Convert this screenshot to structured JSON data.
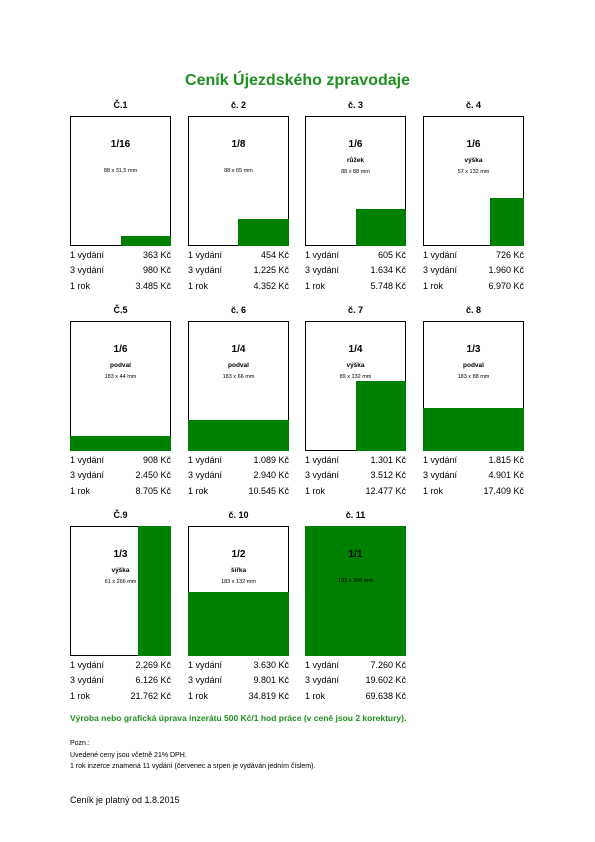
{
  "title": "Ceník Újezdského zpravodaje",
  "ads": [
    {
      "number": "Č.1",
      "fraction": "1/16",
      "dimensions": "88 x 31,5 mm",
      "prices": [
        [
          "1 vydání",
          "363 Kč"
        ],
        [
          "3 vydání",
          "980 Kč"
        ],
        [
          "1 rok",
          "3.485 Kč"
        ]
      ]
    },
    {
      "number": "č. 2",
      "fraction": "1/8",
      "dimensions": "88 x 65 mm",
      "prices": [
        [
          "1 vydání",
          "454 Kč"
        ],
        [
          "3 vydání",
          "1.225 Kč"
        ],
        [
          "1 rok",
          "4.352 Kč"
        ]
      ]
    },
    {
      "number": "č. 3",
      "fraction": "1/6",
      "variant": "růžek",
      "dimensions": "88 x 88 mm",
      "prices": [
        [
          "1 vydání",
          "605 Kč"
        ],
        [
          "3 vydání",
          "1.634 Kč"
        ],
        [
          "1 rok",
          "5.748 Kč"
        ]
      ]
    },
    {
      "number": "č. 4",
      "fraction": "1/6",
      "variant": "výška",
      "dimensions": "57 x 132 mm",
      "prices": [
        [
          "1 vydání",
          "726 Kč"
        ],
        [
          "3 vydání",
          "1.960 Kč"
        ],
        [
          "1 rok",
          "6.970 Kč"
        ]
      ]
    },
    {
      "number": "Č.5",
      "fraction": "1/6",
      "variant": "podval",
      "dimensions": "183 x 44 mm",
      "prices": [
        [
          "1 vydání",
          "908 Kč"
        ],
        [
          "3 vydání",
          "2.450 Kč"
        ],
        [
          "1 rok",
          "8.705 Kč"
        ]
      ]
    },
    {
      "number": "č. 6",
      "fraction": "1/4",
      "variant": "podval",
      "dimensions": "183 x 66 mm",
      "prices": [
        [
          "1 vydání",
          "1.089 Kč"
        ],
        [
          "3 vydání",
          "2.940 Kč"
        ],
        [
          "1 rok",
          "10.545 Kč"
        ]
      ]
    },
    {
      "number": "č. 7",
      "fraction": "1/4",
      "variant": "výška",
      "dimensions": "89 x 132 mm",
      "prices": [
        [
          "1 vydání",
          "1.301 Kč"
        ],
        [
          "3 vydání",
          "3.512 Kč"
        ],
        [
          "1 rok",
          "12.477 Kč"
        ]
      ]
    },
    {
      "number": "č. 8",
      "fraction": "1/3",
      "variant": "podval",
      "dimensions": "183 x 88 mm",
      "prices": [
        [
          "1 vydání",
          "1.815 Kč"
        ],
        [
          "3 vydání",
          "4.901 Kč"
        ],
        [
          "1 rok",
          "17.409 Kč"
        ]
      ]
    },
    {
      "number": "Č.9",
      "fraction": "1/3",
      "variant": "výška",
      "dimensions": "61 x 266 mm",
      "prices": [
        [
          "1 vydání",
          "2.269 Kč"
        ],
        [
          "3 vydání",
          "6.126 Kč"
        ],
        [
          "1 rok",
          "21.762 Kč"
        ]
      ]
    },
    {
      "number": "č. 10",
      "fraction": "1/2",
      "variant": "šířka",
      "dimensions": "183 x 132 mm",
      "prices": [
        [
          "1 vydání",
          "3.630 Kč"
        ],
        [
          "3 vydání",
          "9.801 Kč"
        ],
        [
          "1 rok",
          "34.819 Kč"
        ]
      ]
    },
    {
      "number": "č. 11",
      "fraction": "1/1",
      "dimensions": "183 x 266 mm",
      "prices": [
        [
          "1 vydání",
          "7.260 Kč"
        ],
        [
          "3 vydání",
          "19.602 Kč"
        ],
        [
          "1 rok",
          "69.638 Kč"
        ]
      ]
    }
  ],
  "production_note": "Výroba nebo grafická úprava inzerátu 500 Kč/1 hod práce (v ceně jsou 2 korektury).",
  "notes": {
    "heading": "Pozn.:",
    "lines": [
      "Uvedené ceny jsou včetně 21% DPH.",
      "1 rok inzerce znamená 11 vydání (červenec a srpen je vydáván jedním číslem)."
    ]
  },
  "footer": "Ceník je platný od 1.8.2015"
}
